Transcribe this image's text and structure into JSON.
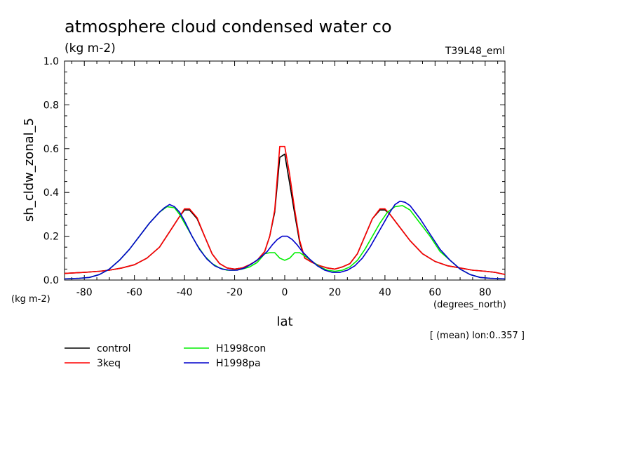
{
  "chart_data": {
    "type": "line",
    "title": "atmosphere cloud condensed water co",
    "units": "(kg m-2)",
    "resolution_label": "T39L48_eml",
    "ylabel": "sh_cldw_zonal_5",
    "y_units": "(kg m-2)",
    "xlabel": "lat",
    "x_units": "(degrees_north)",
    "averaging_note": "[ (mean) lon:0..357 ]",
    "xlim": [
      -87.9,
      87.9
    ],
    "ylim": [
      0.0,
      1.0
    ],
    "x_ticks": [
      -80,
      -60,
      -40,
      -20,
      0,
      20,
      40,
      60,
      80
    ],
    "x_tick_labels": [
      "-80",
      "-60",
      "-40",
      "-20",
      "0",
      "20",
      "40",
      "60",
      "80"
    ],
    "y_ticks": [
      0.0,
      0.2,
      0.4,
      0.6,
      0.8,
      1.0
    ],
    "y_tick_labels": [
      "0.0",
      "0.2",
      "0.4",
      "0.6",
      "0.8",
      "1.0"
    ],
    "grid": false,
    "legend_position": "bottom-left",
    "series": [
      {
        "name": "control",
        "color": "#000000",
        "x": [
          -88,
          -80,
          -74,
          -70,
          -65,
          -60,
          -55,
          -50,
          -46,
          -42,
          -40,
          -38,
          -35,
          -32,
          -29,
          -26,
          -23,
          -20,
          -17,
          -14,
          -11,
          -8,
          -6,
          -4,
          -2,
          0,
          2,
          4,
          6,
          8,
          11,
          14,
          17,
          20,
          23,
          26,
          29,
          32,
          35,
          38,
          40,
          42,
          46,
          50,
          55,
          60,
          65,
          70,
          75,
          80,
          84,
          88
        ],
        "y": [
          0.03,
          0.035,
          0.04,
          0.045,
          0.055,
          0.07,
          0.1,
          0.15,
          0.22,
          0.29,
          0.32,
          0.32,
          0.28,
          0.2,
          0.12,
          0.075,
          0.055,
          0.05,
          0.055,
          0.07,
          0.09,
          0.13,
          0.2,
          0.31,
          0.56,
          0.575,
          0.44,
          0.3,
          0.17,
          0.1,
          0.08,
          0.065,
          0.055,
          0.05,
          0.06,
          0.075,
          0.12,
          0.2,
          0.28,
          0.32,
          0.32,
          0.3,
          0.24,
          0.18,
          0.12,
          0.085,
          0.065,
          0.055,
          0.045,
          0.04,
          0.035,
          0.025
        ]
      },
      {
        "name": "3keq",
        "color": "#ff0000",
        "x": [
          -88,
          -80,
          -74,
          -70,
          -65,
          -60,
          -55,
          -50,
          -46,
          -42,
          -40,
          -38,
          -35,
          -32,
          -29,
          -26,
          -23,
          -20,
          -17,
          -14,
          -11,
          -8,
          -6,
          -4,
          -2,
          0,
          2,
          4,
          6,
          8,
          11,
          14,
          17,
          20,
          23,
          26,
          29,
          32,
          35,
          38,
          40,
          42,
          46,
          50,
          55,
          60,
          65,
          70,
          75,
          80,
          84,
          88
        ],
        "y": [
          0.03,
          0.035,
          0.04,
          0.045,
          0.055,
          0.07,
          0.1,
          0.15,
          0.22,
          0.29,
          0.325,
          0.325,
          0.285,
          0.2,
          0.12,
          0.075,
          0.055,
          0.05,
          0.055,
          0.07,
          0.09,
          0.13,
          0.2,
          0.32,
          0.61,
          0.61,
          0.48,
          0.32,
          0.18,
          0.1,
          0.08,
          0.065,
          0.055,
          0.05,
          0.06,
          0.075,
          0.12,
          0.2,
          0.28,
          0.325,
          0.325,
          0.3,
          0.24,
          0.18,
          0.12,
          0.085,
          0.065,
          0.055,
          0.045,
          0.04,
          0.035,
          0.025
        ]
      },
      {
        "name": "H1998con",
        "color": "#00ee00",
        "x": [
          -88,
          -82,
          -78,
          -74,
          -70,
          -66,
          -62,
          -58,
          -54,
          -50,
          -47,
          -44,
          -42,
          -40,
          -38,
          -35,
          -32,
          -29,
          -26,
          -23,
          -20,
          -17,
          -14,
          -11,
          -8,
          -6,
          -4,
          -2,
          0,
          2,
          4,
          6,
          8,
          11,
          14,
          17,
          20,
          23,
          26,
          29,
          32,
          35,
          38,
          41,
          44,
          47,
          50,
          54,
          58,
          62,
          66,
          70,
          74,
          78,
          82,
          88
        ],
        "y": [
          0.005,
          0.008,
          0.012,
          0.025,
          0.05,
          0.09,
          0.14,
          0.2,
          0.26,
          0.31,
          0.335,
          0.33,
          0.3,
          0.26,
          0.22,
          0.16,
          0.11,
          0.075,
          0.055,
          0.045,
          0.045,
          0.05,
          0.06,
          0.08,
          0.12,
          0.125,
          0.125,
          0.1,
          0.09,
          0.1,
          0.125,
          0.125,
          0.11,
          0.085,
          0.06,
          0.045,
          0.04,
          0.045,
          0.06,
          0.09,
          0.14,
          0.2,
          0.26,
          0.31,
          0.335,
          0.34,
          0.32,
          0.26,
          0.2,
          0.13,
          0.09,
          0.05,
          0.025,
          0.012,
          0.008,
          0.005
        ]
      },
      {
        "name": "H1998pa",
        "color": "#0000cc",
        "x": [
          -88,
          -82,
          -78,
          -74,
          -70,
          -66,
          -62,
          -58,
          -54,
          -50,
          -48,
          -46,
          -44,
          -42,
          -40,
          -37,
          -34,
          -31,
          -28,
          -25,
          -22,
          -19,
          -16,
          -13,
          -10,
          -7,
          -5,
          -3,
          -1,
          0,
          1,
          3,
          5,
          7,
          10,
          13,
          16,
          19,
          22,
          25,
          28,
          31,
          34,
          37,
          40,
          42,
          44,
          46,
          48,
          50,
          54,
          58,
          62,
          66,
          70,
          74,
          78,
          82,
          88
        ],
        "y": [
          0.005,
          0.008,
          0.012,
          0.025,
          0.05,
          0.09,
          0.14,
          0.2,
          0.26,
          0.31,
          0.33,
          0.345,
          0.335,
          0.31,
          0.27,
          0.2,
          0.14,
          0.095,
          0.065,
          0.05,
          0.045,
          0.045,
          0.055,
          0.075,
          0.1,
          0.13,
          0.16,
          0.185,
          0.2,
          0.2,
          0.2,
          0.185,
          0.16,
          0.13,
          0.095,
          0.065,
          0.045,
          0.035,
          0.035,
          0.045,
          0.065,
          0.1,
          0.15,
          0.21,
          0.27,
          0.31,
          0.345,
          0.36,
          0.355,
          0.34,
          0.28,
          0.21,
          0.14,
          0.09,
          0.05,
          0.025,
          0.012,
          0.008,
          0.005
        ]
      }
    ]
  }
}
